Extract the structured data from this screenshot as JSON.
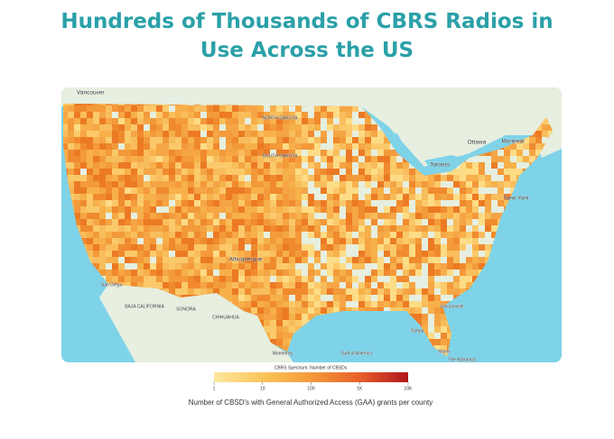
{
  "title": "Hundreds of Thousands of CBRS Radios in Use Across the US",
  "map": {
    "labels": [
      "Vancouver",
      "NORTH DAKOTA",
      "SOUTH DAKOTA",
      "Ottawa",
      "Montreal",
      "Toronto",
      "New York",
      "Albuquerque",
      "San Diego",
      "BAJA CALIFORNIA",
      "SONORA",
      "CHIHUAHUA",
      "Monterrey",
      "Jacksonville",
      "Tampa",
      "Miami",
      "Gulf of America",
      "The Bahamas"
    ]
  },
  "legend": {
    "title": "CBRS Spectrum: Number of CBSDs",
    "log_scale": true,
    "lim": [
      1,
      10000
    ],
    "ticks": [
      1,
      10,
      100,
      {
        "value": 1000,
        "label": "1K"
      },
      {
        "value": 10000,
        "label": "10K"
      }
    ],
    "colors": [
      "#fde8a0",
      "#f9c55a",
      "#f39a3a",
      "#e8602a",
      "#b0141c"
    ]
  },
  "caption": "Number of CBSD's with General Authorized Access (GAA) grants per county"
}
